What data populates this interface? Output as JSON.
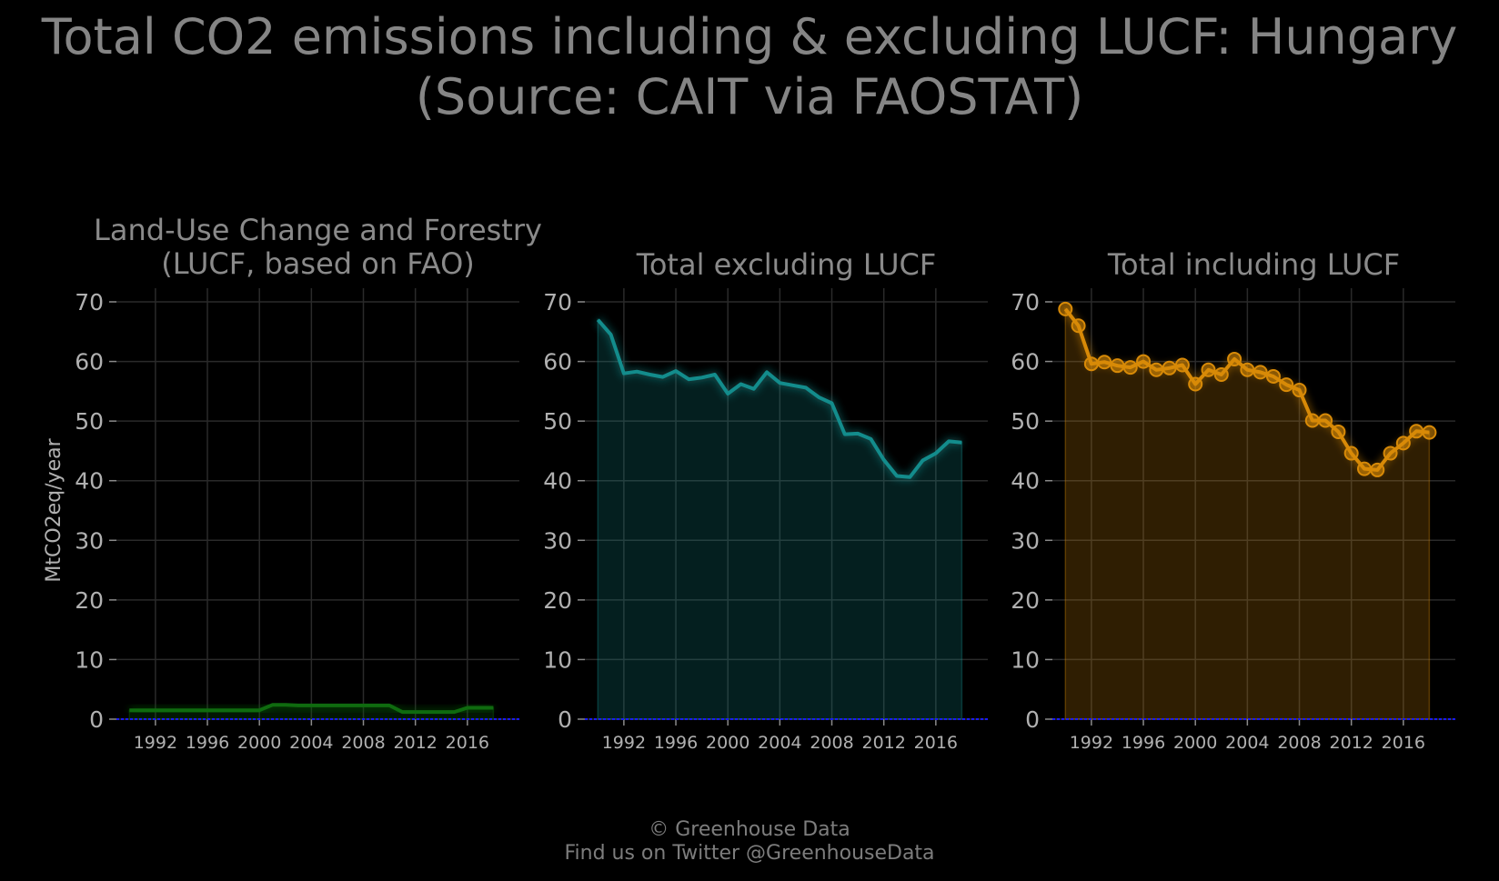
{
  "title_line1": "Total CO2 emissions including & excluding LUCF: Hungary",
  "title_line2": "(Source: CAIT via FAOSTAT)",
  "footer_line1": "© Greenhouse Data",
  "footer_line2": "Find us on Twitter @GreenhouseData",
  "colors": {
    "lucf": "#0f6b0f",
    "excl": "#138c8c",
    "incl": "#d88a07",
    "zero": "#1a1aff",
    "grid": "#2a2a2a",
    "text": "#8a8a8a"
  },
  "chart_data": [
    {
      "type": "area",
      "title": [
        "Land-Use Change and Forestry",
        "(LUCF, based on FAO)"
      ],
      "ylabel": "MtCO2eq/year",
      "xlabel": "",
      "xlim": [
        1989,
        2020
      ],
      "ylim": [
        0,
        70
      ],
      "yticks": [
        0,
        10,
        20,
        30,
        40,
        50,
        60,
        70
      ],
      "xticks": [
        1992,
        1996,
        2000,
        2004,
        2008,
        2012,
        2016
      ],
      "grid": true,
      "markers": false,
      "color_key": "lucf",
      "x": [
        1990,
        1991,
        1992,
        1993,
        1994,
        1995,
        1996,
        1997,
        1998,
        1999,
        2000,
        2001,
        2002,
        2003,
        2004,
        2005,
        2006,
        2007,
        2008,
        2009,
        2010,
        2011,
        2012,
        2013,
        2014,
        2015,
        2016,
        2017,
        2018
      ],
      "values": [
        1.5,
        1.5,
        1.5,
        1.5,
        1.5,
        1.5,
        1.5,
        1.5,
        1.5,
        1.5,
        1.5,
        2.4,
        2.4,
        2.3,
        2.3,
        2.3,
        2.3,
        2.3,
        2.3,
        2.3,
        2.3,
        1.2,
        1.2,
        1.2,
        1.2,
        1.2,
        1.9,
        1.9,
        1.9
      ]
    },
    {
      "type": "area",
      "title": [
        "Total excluding LUCF"
      ],
      "ylabel": "",
      "xlabel": "",
      "xlim": [
        1989,
        2020
      ],
      "ylim": [
        0,
        70
      ],
      "yticks": [
        0,
        10,
        20,
        30,
        40,
        50,
        60,
        70
      ],
      "xticks": [
        1992,
        1996,
        2000,
        2004,
        2008,
        2012,
        2016
      ],
      "grid": true,
      "markers": false,
      "color_key": "excl",
      "x": [
        1990,
        1991,
        1992,
        1993,
        1994,
        1995,
        1996,
        1997,
        1998,
        1999,
        2000,
        2001,
        2002,
        2003,
        2004,
        2005,
        2006,
        2007,
        2008,
        2009,
        2010,
        2011,
        2012,
        2013,
        2014,
        2015,
        2016,
        2017,
        2018
      ],
      "values": [
        67.0,
        64.5,
        58.0,
        58.3,
        57.8,
        57.4,
        58.4,
        57.0,
        57.3,
        57.8,
        54.6,
        56.2,
        55.4,
        58.2,
        56.4,
        56.0,
        55.6,
        54.0,
        53.0,
        47.8,
        47.9,
        47.0,
        43.5,
        40.8,
        40.6,
        43.4,
        44.6,
        46.6,
        46.4
      ]
    },
    {
      "type": "area",
      "title": [
        "Total including LUCF"
      ],
      "ylabel": "",
      "xlabel": "",
      "xlim": [
        1989,
        2020
      ],
      "ylim": [
        0,
        70
      ],
      "yticks": [
        0,
        10,
        20,
        30,
        40,
        50,
        60,
        70
      ],
      "xticks": [
        1992,
        1996,
        2000,
        2004,
        2008,
        2012,
        2016
      ],
      "grid": true,
      "markers": true,
      "color_key": "incl",
      "x": [
        1990,
        1991,
        1992,
        1993,
        1994,
        1995,
        1996,
        1997,
        1998,
        1999,
        2000,
        2001,
        2002,
        2003,
        2004,
        2005,
        2006,
        2007,
        2008,
        2009,
        2010,
        2011,
        2012,
        2013,
        2014,
        2015,
        2016,
        2017,
        2018
      ],
      "values": [
        68.8,
        66.0,
        59.6,
        59.9,
        59.3,
        59.0,
        60.0,
        58.6,
        58.9,
        59.4,
        56.2,
        58.6,
        57.8,
        60.4,
        58.6,
        58.2,
        57.5,
        56.1,
        55.2,
        50.1,
        50.1,
        48.2,
        44.6,
        42.0,
        41.8,
        44.6,
        46.3,
        48.3,
        48.1
      ]
    }
  ]
}
